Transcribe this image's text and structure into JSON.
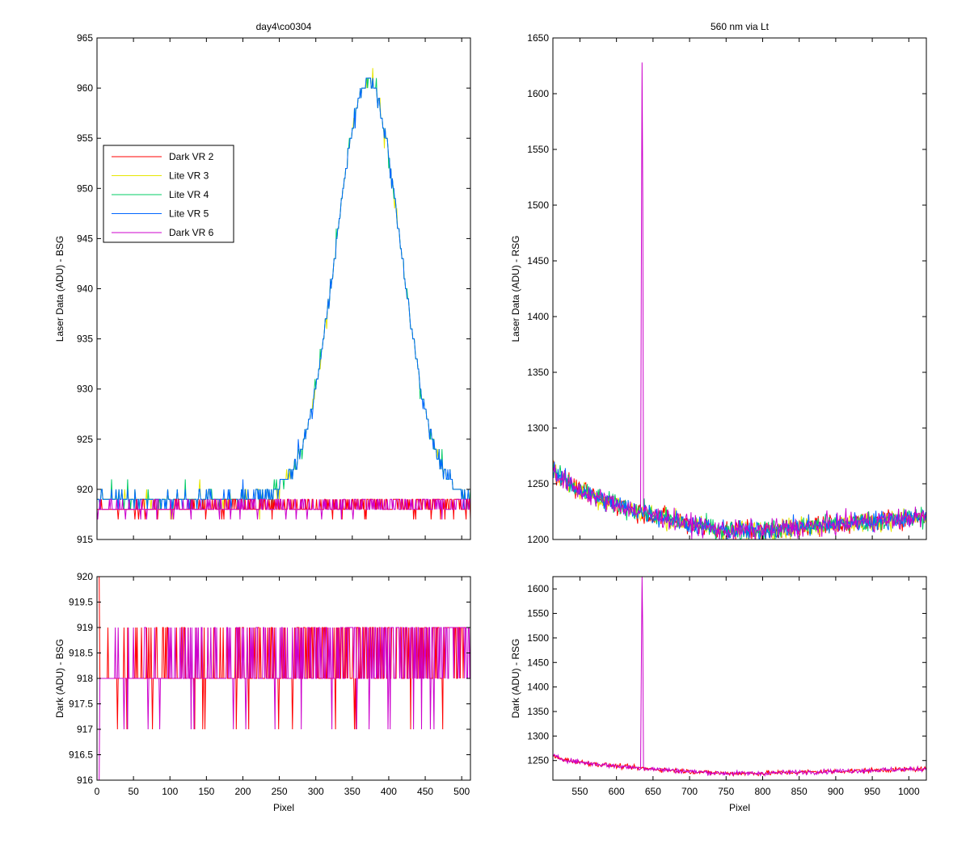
{
  "chart_data": [
    {
      "id": "top_left",
      "type": "line",
      "title": "day4\\co0304",
      "xlabel": "",
      "ylabel": "Laser Data (ADU) - BSG",
      "xlim": [
        0,
        512
      ],
      "ylim": [
        915,
        965
      ],
      "xticks": [
        0,
        50,
        100,
        150,
        200,
        250,
        300,
        350,
        400,
        450,
        500
      ],
      "show_xtick_labels": false,
      "yticks": [
        915,
        920,
        925,
        930,
        935,
        940,
        945,
        950,
        955,
        960,
        965
      ],
      "legend_position": "upper-left",
      "series": [
        {
          "name": "Dark VR 2",
          "color": "#ff0000"
        },
        {
          "name": "Lite VR 3",
          "color": "#e6e600"
        },
        {
          "name": "Lite VR 4",
          "color": "#00cc66"
        },
        {
          "name": "Lite VR 5",
          "color": "#0066ff"
        },
        {
          "name": "Dark VR 6",
          "color": "#cc00cc"
        }
      ]
    },
    {
      "id": "top_right",
      "type": "line",
      "title": "560 nm via Lt",
      "xlabel": "",
      "ylabel": "Laser Data (ADU) - RSG",
      "xlim": [
        513,
        1024
      ],
      "ylim": [
        1200,
        1650
      ],
      "xticks": [
        550,
        600,
        650,
        700,
        750,
        800,
        850,
        900,
        950,
        1000
      ],
      "show_xtick_labels": false,
      "yticks": [
        1200,
        1250,
        1300,
        1350,
        1400,
        1450,
        1500,
        1550,
        1600,
        1650
      ],
      "spike": {
        "x": 635,
        "y": 1628
      }
    },
    {
      "id": "bottom_left",
      "type": "line",
      "title": "",
      "xlabel": "Pixel",
      "ylabel": "Dark (ADU) - BSG",
      "xlim": [
        0,
        512
      ],
      "ylim": [
        916,
        920
      ],
      "xticks": [
        0,
        50,
        100,
        150,
        200,
        250,
        300,
        350,
        400,
        450,
        500
      ],
      "show_xtick_labels": true,
      "yticks": [
        916,
        916.5,
        917,
        917.5,
        918,
        918.5,
        919,
        919.5,
        920
      ]
    },
    {
      "id": "bottom_right",
      "type": "line",
      "title": "",
      "xlabel": "Pixel",
      "ylabel": "Dark (ADU) - RSG",
      "xlim": [
        513,
        1024
      ],
      "ylim": [
        1210,
        1625
      ],
      "xticks": [
        550,
        600,
        650,
        700,
        750,
        800,
        850,
        900,
        950,
        1000
      ],
      "show_xtick_labels": true,
      "yticks": [
        1250,
        1300,
        1350,
        1400,
        1450,
        1500,
        1550,
        1600
      ],
      "spike": {
        "x": 635,
        "y": 1625
      }
    }
  ]
}
